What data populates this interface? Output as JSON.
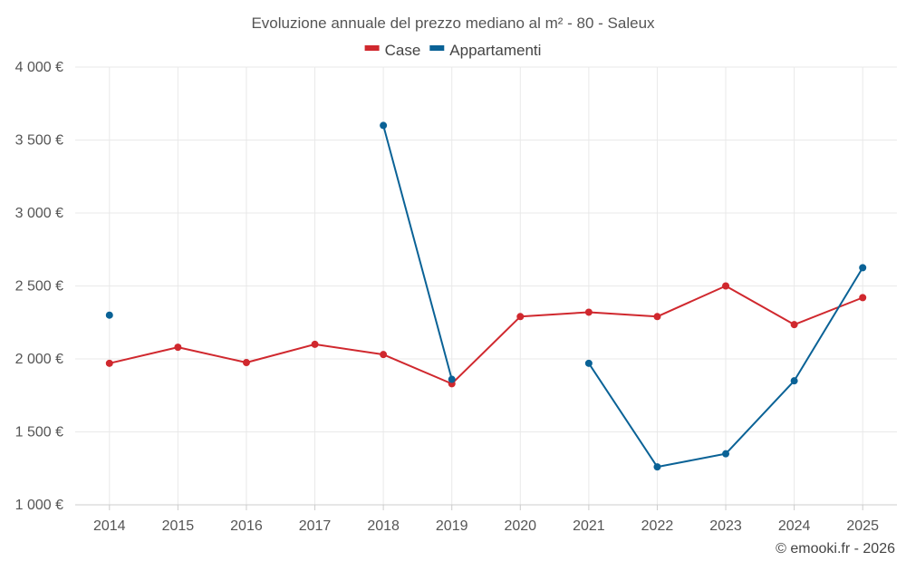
{
  "chart_data": {
    "type": "line",
    "title": "Evoluzione annuale del prezzo mediano al m² - 80 - Saleux",
    "xlabel": "",
    "ylabel": "",
    "categories": [
      "2014",
      "2015",
      "2016",
      "2017",
      "2018",
      "2019",
      "2020",
      "2021",
      "2022",
      "2023",
      "2024",
      "2025"
    ],
    "ylim": [
      1000,
      4000
    ],
    "yticks": [
      1000,
      1500,
      2000,
      2500,
      3000,
      3500,
      4000
    ],
    "ytick_labels": [
      "1 000 €",
      "1 500 €",
      "2 000 €",
      "2 500 €",
      "3 000 €",
      "3 500 €",
      "4 000 €"
    ],
    "grid": true,
    "legend_position": "top-center",
    "series": [
      {
        "name": "Case",
        "color": "#d0282e",
        "values": [
          1970,
          2080,
          1975,
          2100,
          2030,
          1830,
          2290,
          2320,
          2290,
          2500,
          2235,
          2420
        ]
      },
      {
        "name": "Appartamenti",
        "color": "#0a6296",
        "values": [
          2300,
          null,
          null,
          null,
          3600,
          1860,
          null,
          1970,
          1260,
          1350,
          1850,
          2625
        ]
      }
    ],
    "credit": "© emooki.fr - 2026"
  }
}
